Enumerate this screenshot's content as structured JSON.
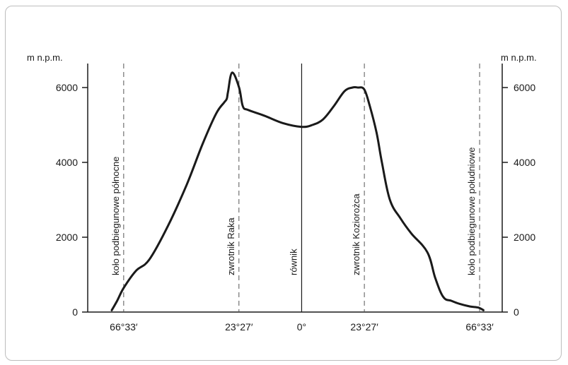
{
  "chart_data": {
    "type": "line",
    "title": "",
    "ylabel_left": "m n.p.m.",
    "ylabel_right": "m n.p.m.",
    "ylim": [
      0,
      6000
    ],
    "yticks": [
      0,
      2000,
      4000,
      6000
    ],
    "ytick_labels": [
      "0",
      "2000",
      "4000",
      "6000"
    ],
    "xlim": [
      -80,
      75
    ],
    "x_tick_values": [
      -66.55,
      -23.45,
      0,
      23.45,
      66.55
    ],
    "x_tick_labels": [
      "66°33′",
      "23°27′",
      "0°",
      "23°27′",
      "66°33′"
    ],
    "reference_lines": [
      {
        "x": -66.55,
        "label": "koło podbiegunowe północne",
        "style": "dashed"
      },
      {
        "x": -23.45,
        "label": "zwrotnik  Raka",
        "style": "dashed"
      },
      {
        "x": 0,
        "label": "równik",
        "style": "solid"
      },
      {
        "x": 23.45,
        "label": "zwrotnik Koziorożca",
        "style": "dashed"
      },
      {
        "x": 66.55,
        "label": "koło podbiegunowe południowe",
        "style": "dashed"
      }
    ],
    "series": [
      {
        "x": [
          -71,
          -69,
          -66.5,
          -62,
          -57,
          -50,
          -43,
          -37,
          -32,
          -29,
          -28,
          -27.5,
          -26,
          -23.4,
          -22,
          -20,
          -14,
          -7,
          0,
          4,
          8,
          12,
          16,
          19,
          21,
          23.4,
          25.5,
          28,
          30,
          33,
          37,
          41,
          47,
          50,
          53,
          56,
          59,
          63,
          66,
          68
        ],
        "y": [
          50,
          300,
          650,
          1100,
          1400,
          2300,
          3400,
          4500,
          5300,
          5600,
          5700,
          5900,
          6400,
          6000,
          5500,
          5400,
          5250,
          5050,
          4950,
          5000,
          5150,
          5500,
          5900,
          6000,
          6000,
          5950,
          5500,
          4800,
          4000,
          3000,
          2500,
          2100,
          1600,
          900,
          400,
          300,
          220,
          150,
          120,
          50
        ]
      }
    ]
  }
}
